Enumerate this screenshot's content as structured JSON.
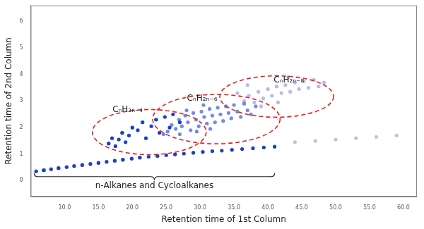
{
  "chart_data": {
    "type": "scatter",
    "x_label": "Retention time of 1st Column",
    "y_label": "Retention time of 2nd Column",
    "xlim": [
      5,
      62
    ],
    "xticks": [
      {
        "value": 10,
        "label": "10.0"
      },
      {
        "value": 15,
        "label": "15.0"
      },
      {
        "value": 20,
        "label": "20.0"
      },
      {
        "value": 25,
        "label": "25.0"
      },
      {
        "value": 30,
        "label": "30.0"
      },
      {
        "value": 35,
        "label": "35.0"
      },
      {
        "value": 40,
        "label": "40.0"
      },
      {
        "value": 45,
        "label": "45.0"
      },
      {
        "value": 50,
        "label": "50.0"
      },
      {
        "value": 55,
        "label": "55.0"
      },
      {
        "value": 60,
        "label": "60.0"
      }
    ],
    "ylim": [
      -0.6,
      6.6
    ],
    "yticks": [
      0,
      1,
      2,
      3,
      4,
      5,
      6
    ],
    "grid": false,
    "series": [
      {
        "color": "#1f3fbf",
        "marker": "circle",
        "x": [
          5.8,
          6.9,
          8.0,
          9.1,
          10.3,
          11.4,
          12.6,
          13.8,
          15.0,
          16.2,
          17.4,
          18.6,
          19.9,
          21.1,
          22.4,
          23.7,
          25.0,
          26.3,
          27.6,
          29.0,
          30.4,
          31.8,
          33.2,
          34.7,
          36.2,
          37.8,
          39.4,
          41.0
        ],
        "values": [
          0.35,
          0.39,
          0.43,
          0.47,
          0.51,
          0.55,
          0.59,
          0.63,
          0.67,
          0.71,
          0.75,
          0.79,
          0.83,
          0.87,
          0.9,
          0.93,
          0.96,
          0.99,
          1.02,
          1.05,
          1.08,
          1.11,
          1.13,
          1.16,
          1.19,
          1.22,
          1.25,
          1.28
        ]
      },
      {
        "color": "#9aa6e0aa",
        "marker": "circle",
        "x": [
          44,
          47,
          50,
          53,
          56,
          59
        ],
        "values": [
          1.45,
          1.5,
          1.55,
          1.6,
          1.65,
          1.7
        ]
      },
      {
        "color": "#1a3fd0",
        "marker": "circle",
        "x": [
          16.5,
          17.0,
          18.0,
          18.5,
          19.5,
          20.0,
          20.8,
          21.5,
          22.0,
          22.8,
          23.5,
          24.0,
          24.8,
          25.5,
          26.0,
          27.0,
          17.5,
          19.0
        ],
        "values": [
          1.4,
          1.6,
          1.55,
          1.8,
          1.7,
          2.0,
          1.9,
          2.2,
          1.6,
          2.05,
          2.3,
          1.8,
          2.4,
          2.0,
          2.5,
          2.2,
          1.3,
          1.45
        ]
      },
      {
        "color": "#2a4fd8aa",
        "marker": "circle",
        "x": [
          25.2,
          25.8,
          26.4,
          26.9,
          27.3,
          27.8,
          28.2,
          28.6,
          29.0,
          29.4,
          29.8,
          30.2,
          30.6,
          31.0,
          31.4,
          31.8,
          32.2,
          32.6,
          33.0,
          33.4,
          33.8,
          34.2,
          34.6,
          35.0,
          35.5,
          36.0,
          36.5,
          37.0,
          37.5,
          38.2,
          27.0,
          29.5,
          31.5,
          24.6,
          28.0,
          30.5
        ],
        "values": [
          1.85,
          2.1,
          1.95,
          2.3,
          2.05,
          2.45,
          2.2,
          1.9,
          2.55,
          2.3,
          2.05,
          2.6,
          2.4,
          2.15,
          2.7,
          2.45,
          2.2,
          2.75,
          2.5,
          2.25,
          2.8,
          2.55,
          2.35,
          2.85,
          2.6,
          2.4,
          2.9,
          2.65,
          2.5,
          2.8,
          1.75,
          1.85,
          1.95,
          1.75,
          2.65,
          2.85
        ]
      },
      {
        "color": "#8f9be0aa",
        "marker": "circle",
        "x": [
          36.5,
          37.2,
          38.0,
          38.6,
          39.3,
          40.0,
          40.6,
          41.3,
          42.0,
          42.6,
          43.3,
          44.0,
          44.6,
          45.3,
          46.0,
          46.8,
          47.5,
          48.3,
          39.0,
          41.5,
          43.0,
          35.5,
          37.0
        ],
        "values": [
          3.0,
          3.2,
          2.95,
          3.35,
          3.1,
          3.45,
          3.2,
          3.55,
          3.3,
          3.6,
          3.35,
          3.7,
          3.45,
          3.75,
          3.5,
          3.8,
          3.55,
          3.7,
          2.8,
          2.95,
          3.9,
          3.3,
          3.6
        ]
      },
      {
        "color": "#2fbf5f",
        "marker": "circle",
        "x": [
          7.0,
          9.1,
          12.6,
          15.0,
          18.6,
          21.1,
          23.7,
          26.3,
          29.0,
          18.5,
          20.0,
          21.5,
          23.5,
          16.5
        ],
        "values": [
          0.4,
          0.47,
          0.59,
          0.67,
          0.79,
          0.87,
          0.93,
          0.99,
          1.05,
          1.8,
          2.0,
          2.2,
          2.3,
          1.4
        ]
      }
    ],
    "regions": [
      {
        "label": "CₙH₂ₙ₋₄",
        "color": "#e02020",
        "line_style": "dashed",
        "center": [
          22.5,
          1.83
        ],
        "radii": [
          8.4,
          0.85
        ],
        "label_at": [
          19.3,
          2.68
        ]
      },
      {
        "label": "CₙH₂ₙ₋₆",
        "color": "#e02020",
        "line_style": "dashed",
        "center": [
          32.4,
          2.32
        ],
        "radii": [
          9.4,
          0.93
        ],
        "label_at": [
          30.3,
          3.1
        ]
      },
      {
        "label": "CₙH₂ₙ₋₈",
        "color": "#e02020",
        "line_style": "dashed",
        "center": [
          41.3,
          3.17
        ],
        "radii": [
          8.4,
          0.78
        ],
        "label_at": [
          43.1,
          3.78
        ]
      }
    ],
    "bracket": {
      "label": "n-Alkanes and Cycloalkanes",
      "from": 5.5,
      "to": 41,
      "y": 0.15
    }
  }
}
